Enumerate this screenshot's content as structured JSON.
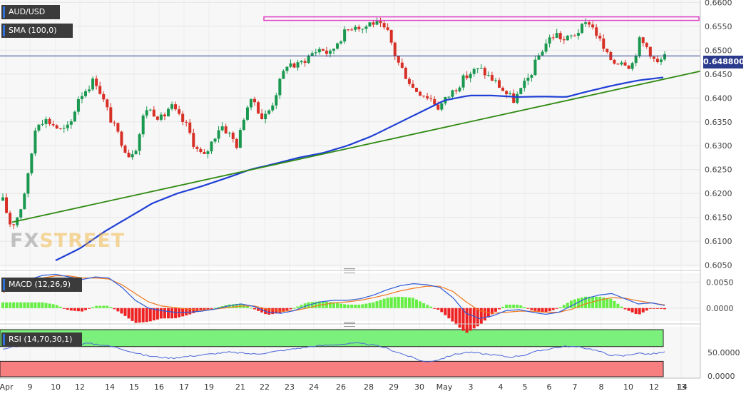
{
  "symbol": "AUD/USD",
  "indicators": {
    "sma": "SMA (100,0)",
    "macd": "MACD (12,26,9)",
    "rsi": "RSI (14,70,30,1)"
  },
  "last_price": "0.648800",
  "watermark": {
    "fx": "FX",
    "street": "STREET"
  },
  "colors": {
    "bull": "#1a9850",
    "bear": "#d73027",
    "sma": "#1f3fd6",
    "trend": "#2f8a12",
    "resistance": "#e040c8",
    "price_line": "#2b3a8c",
    "macd_line": "#2e5bd8",
    "signal_line": "#f07820",
    "hist_pos": "#66ee44",
    "hist_neg": "#ee2222",
    "rsi_line": "#4a64d8",
    "rsi_overbought": "#7cf07c",
    "rsi_oversold": "#f77f7f"
  },
  "chart_data": {
    "type": "candlestick",
    "title": "AUD/USD",
    "ylim": [
      0.6045,
      0.6605
    ],
    "y_ticks": [
      "0.6600",
      "0.6550",
      "0.6500",
      "0.6450",
      "0.6400",
      "0.6350",
      "0.6300",
      "0.6250",
      "0.6200",
      "0.6150",
      "0.6100",
      "0.6050"
    ],
    "x_ticks": [
      "Apr",
      "9",
      "10",
      "12",
      "14",
      "15",
      "16",
      "17",
      "19",
      "21",
      "22",
      "23",
      "24",
      "26",
      "28",
      "29",
      "30",
      "May",
      "3",
      "4",
      "5",
      "6",
      "7",
      "8",
      "10",
      "12",
      "13",
      "14"
    ],
    "last_price": 0.6488,
    "resistance_level": 0.6566,
    "trendline": {
      "start": 0.614,
      "end": 0.6456
    },
    "close_path": [
      0.6185,
      0.613,
      0.616,
      0.6235,
      0.635,
      0.6355,
      0.6345,
      0.633,
      0.634,
      0.64,
      0.642,
      0.644,
      0.6395,
      0.635,
      0.6315,
      0.628,
      0.63,
      0.638,
      0.637,
      0.6355,
      0.6385,
      0.636,
      0.634,
      0.6295,
      0.6275,
      0.631,
      0.6345,
      0.6325,
      0.63,
      0.638,
      0.6395,
      0.6355,
      0.638,
      0.643,
      0.6475,
      0.6465,
      0.648,
      0.6495,
      0.6505,
      0.649,
      0.652,
      0.654,
      0.6555,
      0.6545,
      0.656,
      0.655,
      0.6535,
      0.648,
      0.645,
      0.642,
      0.641,
      0.64,
      0.638,
      0.64,
      0.642,
      0.644,
      0.6455,
      0.646,
      0.6445,
      0.643,
      0.641,
      0.6395,
      0.642,
      0.645,
      0.649,
      0.652,
      0.6535,
      0.652,
      0.653,
      0.6545,
      0.656,
      0.653,
      0.649,
      0.6475,
      0.648,
      0.6465,
      0.652,
      0.6505,
      0.647,
      0.6485
    ],
    "sma_path": [
      0.606,
      0.6085,
      0.612,
      0.615,
      0.618,
      0.62,
      0.6215,
      0.6232,
      0.625,
      0.6262,
      0.6275,
      0.6285,
      0.63,
      0.632,
      0.6345,
      0.637,
      0.6395,
      0.6405,
      0.6405,
      0.6402,
      0.6403,
      0.6402,
      0.6415,
      0.6427,
      0.6437,
      0.6443
    ],
    "macd": {
      "ylim": [
        -0.0025,
        0.0067
      ],
      "y_ticks": [
        "0.0050",
        "0.0000"
      ],
      "macd_path": [
        0.0035,
        0.0045,
        0.0055,
        0.0063,
        0.0065,
        0.006,
        0.0055,
        0.006,
        0.0058,
        0.004,
        0.0015,
        0.0,
        -0.0005,
        -0.0008,
        -0.0008,
        -0.0006,
        -0.0002,
        0.0004,
        0.0008,
        0.0003,
        -0.0008,
        -0.001,
        -0.0005,
        0.0005,
        0.0012,
        0.0015,
        0.0015,
        0.0018,
        0.0025,
        0.0035,
        0.0043,
        0.0047,
        0.0045,
        0.004,
        0.002,
        -0.001,
        -0.002,
        -0.0015,
        -0.0005,
        -0.0003,
        -0.0008,
        -0.0012,
        -0.0008,
        0.0005,
        0.0018,
        0.0025,
        0.0028,
        0.0018,
        0.0008,
        0.001,
        0.0005
      ],
      "signal_path": [
        0.003,
        0.004,
        0.005,
        0.0058,
        0.0062,
        0.0062,
        0.0058,
        0.0058,
        0.0056,
        0.0045,
        0.0028,
        0.0012,
        0.0004,
        0.0001,
        -0.0002,
        -0.0004,
        -0.0002,
        0.0001,
        0.0004,
        0.0004,
        -0.0002,
        -0.0006,
        -0.0005,
        0.0,
        0.0006,
        0.001,
        0.0012,
        0.0015,
        0.002,
        0.0026,
        0.0033,
        0.0038,
        0.0042,
        0.0042,
        0.0032,
        0.0012,
        -0.0005,
        -0.001,
        -0.0008,
        -0.0006,
        -0.0006,
        -0.0008,
        -0.0008,
        -0.0002,
        0.0008,
        0.0015,
        0.002,
        0.0019,
        0.0014,
        0.001,
        0.0006
      ]
    },
    "rsi": {
      "ylim": [
        0,
        100
      ],
      "y_ticks": [
        "50.0000",
        "0.0000"
      ],
      "overbought": 70,
      "oversold": 30,
      "rsi_path": [
        55,
        62,
        68,
        72,
        70,
        66,
        68,
        65,
        60,
        52,
        44,
        40,
        38,
        41,
        44,
        47,
        50,
        48,
        46,
        50,
        54,
        58,
        62,
        64,
        66,
        68,
        66,
        60,
        50,
        40,
        30,
        35,
        45,
        50,
        47,
        44,
        40,
        44,
        52,
        58,
        62,
        60,
        55,
        45,
        42,
        48,
        46,
        50
      ]
    }
  }
}
